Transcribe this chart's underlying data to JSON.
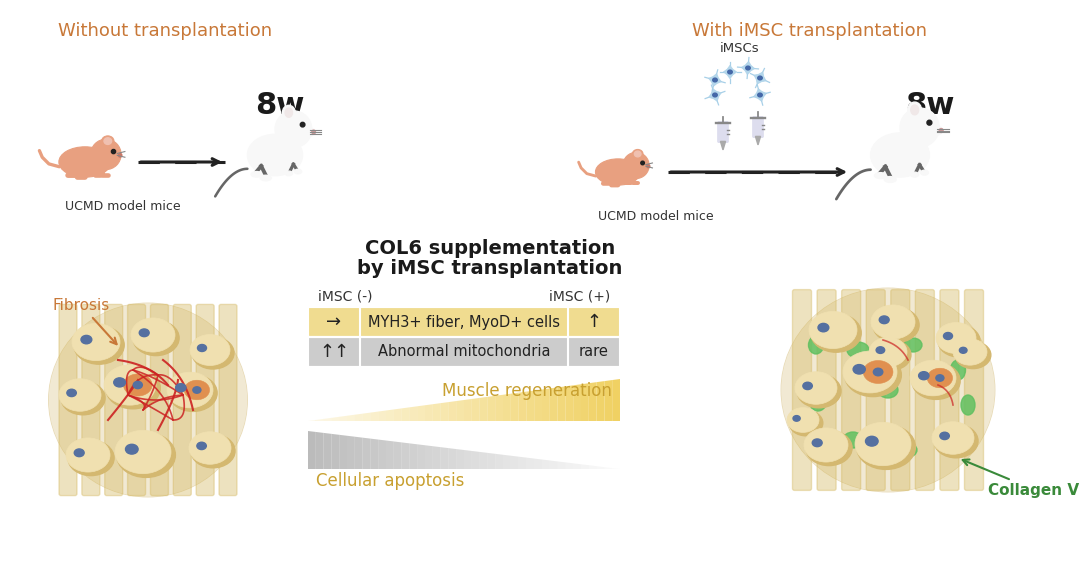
{
  "bg_color": "#ffffff",
  "title_left": "Without transplantation",
  "title_right": "With iMSC transplantation",
  "title_color": "#c87838",
  "label_8w_left": "8w",
  "label_8w_right": "8w",
  "label_ucmd_left": "UCMD model mice",
  "label_ucmd_right": "UCMD model mice",
  "label_imscs": "iMSCs",
  "col6_title_line1": "COL6 supplementation",
  "col6_title_line2": "by iMSC transplantation",
  "col6_title_color": "#1a1a1a",
  "table_header_left": "iMSC (-)",
  "table_header_right": "iMSC (+)",
  "table_row1_left": "→",
  "table_row1_center": "MYH3+ fiber, MyoD+ cells",
  "table_row1_right": "↑",
  "table_row1_bg": "#f0dc90",
  "table_row2_left": "↑↑",
  "table_row2_center": "Abnormal mitochondria",
  "table_row2_right": "rare",
  "table_row2_bg": "#cccccc",
  "muscle_regen_text": "Muscle regeneration",
  "muscle_regen_color": "#c8a030",
  "cellular_apoptosis_text": "Cellular apoptosis",
  "cellular_apoptosis_color": "#c8a030",
  "fibrosis_text": "Fibrosis",
  "fibrosis_color": "#c87838",
  "collagen_text": "Collagen VI",
  "collagen_color": "#3a8a3a",
  "figsize": [
    10.8,
    5.64
  ],
  "dpi": 100
}
